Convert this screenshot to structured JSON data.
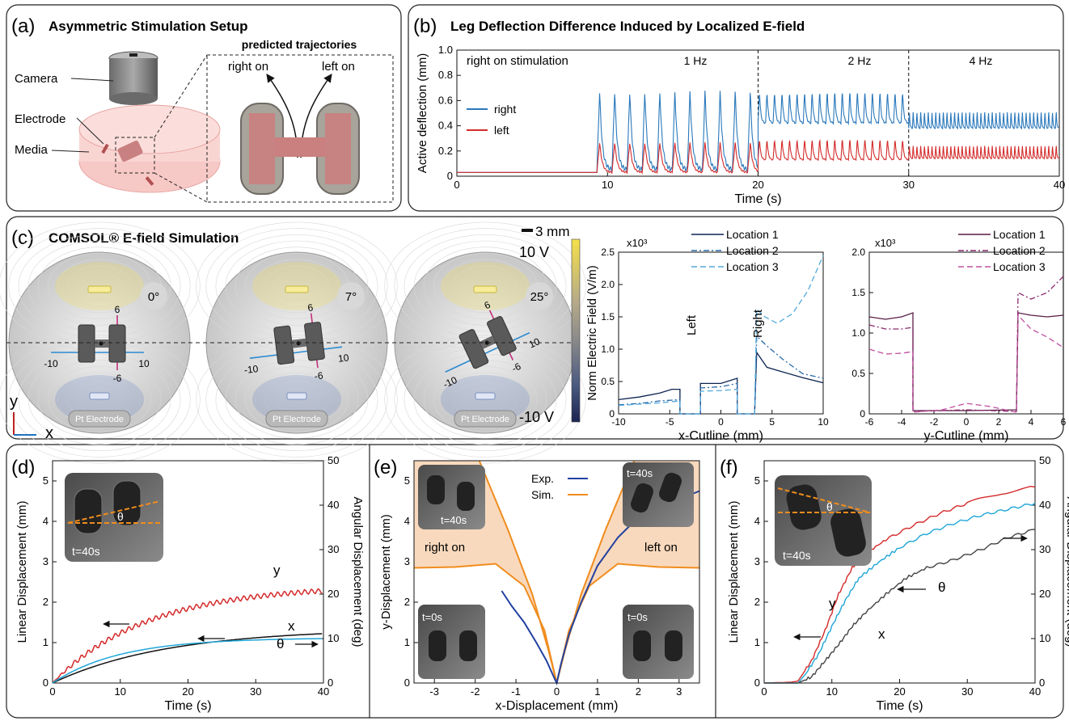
{
  "panels": {
    "a": {
      "letter": "(a)",
      "title": "Asymmetric Stimulation Setup",
      "labels": {
        "camera": "Camera",
        "electrode": "Electrode",
        "media": "Media",
        "predicted": "predicted trajectories",
        "right_on": "right on",
        "left_on": "left on"
      }
    },
    "b": {
      "letter": "(b)",
      "title": "Leg Deflection Difference Induced by Localized E-field",
      "annotation": "right on stimulation",
      "freqs": [
        "1 Hz",
        "2 Hz",
        "4 Hz"
      ]
    },
    "c": {
      "letter": "(c)",
      "title": "COMSOL® E-field Simulation",
      "angles": [
        "0°",
        "7°",
        "25°"
      ],
      "electrode_label": "Pt Electrode",
      "scale_bar": "3 mm",
      "colorbar_max": "10 V",
      "colorbar_min": "-10 V",
      "cut_ticks": {
        "pos": "10",
        "neg": "-10",
        "ypos": "6",
        "yneg": "-6"
      },
      "axis_y": "y",
      "axis_x": "x",
      "left_label": "Left",
      "right_label": "Right",
      "exp_left": "x10³",
      "exp_right": "x10³"
    },
    "d": {
      "letter": "(d)",
      "inset_time": "t=40s",
      "theta": "θ",
      "curve_labels": {
        "y": "y",
        "x": "x",
        "theta": "θ"
      }
    },
    "e": {
      "letter": "(e)",
      "right_on": "right on",
      "left_on": "left on",
      "t40": "t=40s",
      "t0": "t=0s"
    },
    "f": {
      "letter": "(f)",
      "inset_time": "t=40s",
      "theta": "θ",
      "curve_labels": {
        "y": "y",
        "x": "x",
        "theta": "θ"
      }
    }
  },
  "chart_data": [
    {
      "id": "b",
      "type": "line",
      "xlabel": "Time (s)",
      "ylabel": "Active deflection (mm)",
      "xlim": [
        0,
        40
      ],
      "ylim": [
        0,
        1.0
      ],
      "xticks": [
        "0",
        "10",
        "20",
        "30",
        "40"
      ],
      "yticks": [
        "0",
        "0.2",
        "0.4",
        "0.6",
        "0.8",
        "1.0"
      ],
      "legend": [
        "right",
        "left"
      ],
      "dividers": [
        20,
        30
      ],
      "series": [
        {
          "name": "right",
          "color": "#2a78bb",
          "baseline": 0.03,
          "start": 9.3,
          "segments": [
            {
              "from": 9.3,
              "to": 20,
              "freq": 1,
              "low": 0.05,
              "high": 0.68
            },
            {
              "from": 20,
              "to": 30,
              "freq": 2,
              "low": 0.42,
              "high": 0.68
            },
            {
              "from": 30,
              "to": 40,
              "freq": 4,
              "low": 0.38,
              "high": 0.52
            }
          ]
        },
        {
          "name": "left",
          "color": "#d42a2a",
          "baseline": 0.03,
          "start": 9.3,
          "segments": [
            {
              "from": 9.3,
              "to": 20,
              "freq": 1,
              "low": 0.03,
              "high": 0.27
            },
            {
              "from": 20,
              "to": 30,
              "freq": 2,
              "low": 0.13,
              "high": 0.3
            },
            {
              "from": 30,
              "to": 40,
              "freq": 4,
              "low": 0.14,
              "high": 0.25
            }
          ]
        }
      ]
    },
    {
      "id": "c1",
      "type": "line",
      "xlabel": "x-Cutline  (mm)",
      "ylabel": "Norm Electric Field (V/m)",
      "xlim": [
        -10,
        10
      ],
      "ylim": [
        0,
        2.5
      ],
      "xticks": [
        "-10",
        "-5",
        "0",
        "5",
        "10"
      ],
      "yticks": [
        "0",
        "0.5",
        "1.0",
        "1.5",
        "2.0",
        "2.5"
      ],
      "series": [
        {
          "name": "Location 1",
          "color": "#0d2450",
          "points": [
            [
              -10,
              0.22
            ],
            [
              -8,
              0.26
            ],
            [
              -6,
              0.32
            ],
            [
              -4.8,
              0.38
            ],
            [
              -4,
              0.38
            ],
            [
              -4,
              0
            ],
            [
              -2,
              0
            ],
            [
              -2,
              0.47
            ],
            [
              0,
              0.47
            ],
            [
              1.6,
              0.55
            ],
            [
              1.6,
              0
            ],
            [
              3.3,
              0
            ],
            [
              3.5,
              0.95
            ],
            [
              4.5,
              0.72
            ],
            [
              6,
              0.65
            ],
            [
              8,
              0.56
            ],
            [
              10,
              0.48
            ]
          ]
        },
        {
          "name": "Location 2",
          "color": "#2a6aa8",
          "points": [
            [
              -10,
              0.14
            ],
            [
              -8,
              0.16
            ],
            [
              -6,
              0.2
            ],
            [
              -4,
              0.22
            ],
            [
              -4,
              0
            ],
            [
              -2,
              0
            ],
            [
              -2,
              0.4
            ],
            [
              0,
              0.42
            ],
            [
              1.6,
              0.47
            ],
            [
              1.6,
              0
            ],
            [
              3.3,
              0
            ],
            [
              3.5,
              1.2
            ],
            [
              4.5,
              1.05
            ],
            [
              6,
              0.85
            ],
            [
              8,
              0.62
            ],
            [
              10,
              0.55
            ]
          ]
        },
        {
          "name": "Location 3",
          "color": "#52a9dc",
          "points": [
            [
              -10,
              0.13
            ],
            [
              -8,
              0.15
            ],
            [
              -6,
              0.17
            ],
            [
              -4,
              0.2
            ],
            [
              -4,
              0
            ],
            [
              -2,
              0
            ],
            [
              -2,
              0.35
            ],
            [
              0,
              0.36
            ],
            [
              1.6,
              0.38
            ],
            [
              1.6,
              0
            ],
            [
              3.3,
              0
            ],
            [
              3.5,
              1.62
            ],
            [
              4.3,
              1.5
            ],
            [
              5.5,
              1.4
            ],
            [
              7,
              1.55
            ],
            [
              8.5,
              1.9
            ],
            [
              10,
              2.45
            ]
          ]
        }
      ]
    },
    {
      "id": "c2",
      "type": "line",
      "xlabel": "y-Cutline  (mm)",
      "ylabel": "",
      "xlim": [
        -6,
        6
      ],
      "ylim": [
        0,
        2.0
      ],
      "xticks": [
        "-6",
        "-4",
        "-2",
        "0",
        "2",
        "4",
        "6"
      ],
      "yticks": [
        "0",
        "0.5",
        "1.0",
        "1.5",
        "2.0"
      ],
      "series": [
        {
          "name": "Location 1",
          "color": "#5a1c44",
          "points": [
            [
              -6,
              1.2
            ],
            [
              -5,
              1.17
            ],
            [
              -4,
              1.2
            ],
            [
              -3.3,
              1.25
            ],
            [
              -3.3,
              0.04
            ],
            [
              0,
              0.04
            ],
            [
              3.1,
              0.05
            ],
            [
              3.2,
              1.25
            ],
            [
              4,
              1.22
            ],
            [
              5,
              1.2
            ],
            [
              6,
              1.22
            ]
          ]
        },
        {
          "name": "Location 2",
          "color": "#8a2a6e",
          "points": [
            [
              -6,
              1.1
            ],
            [
              -5,
              1.05
            ],
            [
              -4,
              1.05
            ],
            [
              -3.3,
              1.07
            ],
            [
              -3.3,
              0.03
            ],
            [
              0,
              0.05
            ],
            [
              3.1,
              0.03
            ],
            [
              3.2,
              1.5
            ],
            [
              4,
              1.42
            ],
            [
              5,
              1.5
            ],
            [
              6,
              1.7
            ]
          ]
        },
        {
          "name": "Location 3",
          "color": "#c050a0",
          "points": [
            [
              -6,
              0.8
            ],
            [
              -5,
              0.74
            ],
            [
              -4,
              0.75
            ],
            [
              -3.3,
              0.77
            ],
            [
              -3.3,
              0.02
            ],
            [
              -1.5,
              0.05
            ],
            [
              0,
              0.13
            ],
            [
              1.5,
              0.09
            ],
            [
              3.1,
              0.02
            ],
            [
              3.2,
              1.22
            ],
            [
              4,
              1.05
            ],
            [
              5,
              0.95
            ],
            [
              6,
              0.82
            ]
          ]
        }
      ]
    },
    {
      "id": "d",
      "type": "line",
      "xlabel": "Time (s)",
      "ylabel": "Linear Displacement (mm)",
      "y2label": "Angular Displacement (deg)",
      "xlim": [
        0,
        40
      ],
      "ylim": [
        0,
        5.5
      ],
      "y2lim": [
        0,
        50
      ],
      "xticks": [
        "0",
        "10",
        "20",
        "30",
        "40"
      ],
      "yticks": [
        "0",
        "1",
        "2",
        "3",
        "4",
        "5"
      ],
      "y2ticks": [
        "0",
        "10",
        "20",
        "30",
        "40",
        "50"
      ],
      "series": [
        {
          "name": "y",
          "color": "#d42a2a",
          "final": 2.42,
          "tau": 14,
          "ripple": 0.06,
          "freq": 1
        },
        {
          "name": "x",
          "color": "#111111",
          "final": 1.35,
          "tau": 17,
          "ripple": 0,
          "freq": 0
        },
        {
          "name": "θ",
          "color": "#1fa6d8",
          "final": 1.12,
          "tau": 10,
          "ripple": 0,
          "freq": 0
        }
      ]
    },
    {
      "id": "e",
      "type": "line",
      "xlabel": "x-Displacement (mm)",
      "ylabel": "y-Displacement (mm)",
      "xlim": [
        -3.5,
        3.5
      ],
      "ylim": [
        0,
        5.5
      ],
      "xticks": [
        "-3",
        "-2",
        "-1",
        "0",
        "1",
        "2",
        "3"
      ],
      "yticks": [
        "0",
        "1",
        "2",
        "3",
        "4",
        "5"
      ],
      "legend": [
        "Exp.",
        "Sim."
      ],
      "series": [
        {
          "name": "Exp.",
          "color": "#2241a0",
          "points": [
            [
              -1.35,
              2.28
            ],
            [
              -1.1,
              1.9
            ],
            [
              -0.8,
              1.5
            ],
            [
              -0.5,
              1.0
            ],
            [
              -0.25,
              0.55
            ],
            [
              -0.05,
              0.1
            ],
            [
              0,
              0
            ],
            [
              0.1,
              0.45
            ],
            [
              0.3,
              1.2
            ],
            [
              0.6,
              2.0
            ],
            [
              1.0,
              2.9
            ],
            [
              1.5,
              3.6
            ],
            [
              2.0,
              4.1
            ],
            [
              2.5,
              4.35
            ],
            [
              3.0,
              4.55
            ],
            [
              3.5,
              4.75
            ]
          ]
        },
        {
          "name": "Sim.",
          "color": "#f08c1e",
          "fill": "#f9d9bd",
          "outer_left": [
            [
              -3.5,
              2.85
            ],
            [
              -2.5,
              2.87
            ],
            [
              -1.5,
              2.95
            ],
            [
              -0.8,
              2.4
            ],
            [
              -0.3,
              1.3
            ],
            [
              0,
              0
            ]
          ],
          "inner_left": [
            [
              -1.9,
              5.5
            ],
            [
              -1.2,
              3.8
            ],
            [
              -0.6,
              2.2
            ],
            [
              -0.2,
              0.8
            ],
            [
              0,
              0
            ]
          ],
          "inner_right": [
            [
              0,
              0
            ],
            [
              0.2,
              0.8
            ],
            [
              0.6,
              2.2
            ],
            [
              1.2,
              3.8
            ],
            [
              1.9,
              5.5
            ]
          ],
          "outer_right": [
            [
              0,
              0
            ],
            [
              0.3,
              1.3
            ],
            [
              0.8,
              2.4
            ],
            [
              1.5,
              2.95
            ],
            [
              2.5,
              2.87
            ],
            [
              3.5,
              2.85
            ]
          ]
        }
      ]
    },
    {
      "id": "f",
      "type": "line",
      "xlabel": "Time (s)",
      "ylabel": "Linear Displacement (mm)",
      "y2label": "Angular Displacement (deg)",
      "xlim": [
        0,
        40
      ],
      "ylim": [
        0,
        5.5
      ],
      "y2lim": [
        0,
        50
      ],
      "xticks": [
        "0",
        "10",
        "20",
        "30",
        "40"
      ],
      "yticks": [
        "0",
        "1",
        "2",
        "3",
        "4",
        "5"
      ],
      "y2ticks": [
        "0",
        "10",
        "20",
        "30",
        "40",
        "50"
      ],
      "series": [
        {
          "name": "y",
          "color": "#d42a2a",
          "points": [
            [
              0,
              0
            ],
            [
              4,
              0.02
            ],
            [
              5,
              0.05
            ],
            [
              7,
              0.55
            ],
            [
              9,
              1.3
            ],
            [
              11,
              2.2
            ],
            [
              13,
              2.85
            ],
            [
              15,
              3.2
            ],
            [
              18,
              3.55
            ],
            [
              22,
              3.9
            ],
            [
              26,
              4.2
            ],
            [
              30,
              4.45
            ],
            [
              35,
              4.7
            ],
            [
              40,
              4.85
            ]
          ]
        },
        {
          "name": "θ",
          "color": "#1fa6d8",
          "points": [
            [
              0,
              0
            ],
            [
              5,
              0.0
            ],
            [
              6,
              0.2
            ],
            [
              8,
              0.7
            ],
            [
              10,
              1.4
            ],
            [
              12,
              2.05
            ],
            [
              14,
              2.6
            ],
            [
              17,
              3.0
            ],
            [
              20,
              3.35
            ],
            [
              24,
              3.7
            ],
            [
              28,
              3.95
            ],
            [
              32,
              4.15
            ],
            [
              36,
              4.3
            ],
            [
              40,
              4.45
            ]
          ]
        },
        {
          "name": "x",
          "color": "#444444",
          "points": [
            [
              0,
              0
            ],
            [
              5,
              0.0
            ],
            [
              7,
              0.15
            ],
            [
              9,
              0.55
            ],
            [
              11,
              0.95
            ],
            [
              13,
              1.4
            ],
            [
              15,
              1.75
            ],
            [
              18,
              2.2
            ],
            [
              21,
              2.6
            ],
            [
              24,
              2.85
            ],
            [
              28,
              3.05
            ],
            [
              32,
              3.3
            ],
            [
              36,
              3.6
            ],
            [
              40,
              3.8
            ]
          ]
        }
      ]
    }
  ]
}
